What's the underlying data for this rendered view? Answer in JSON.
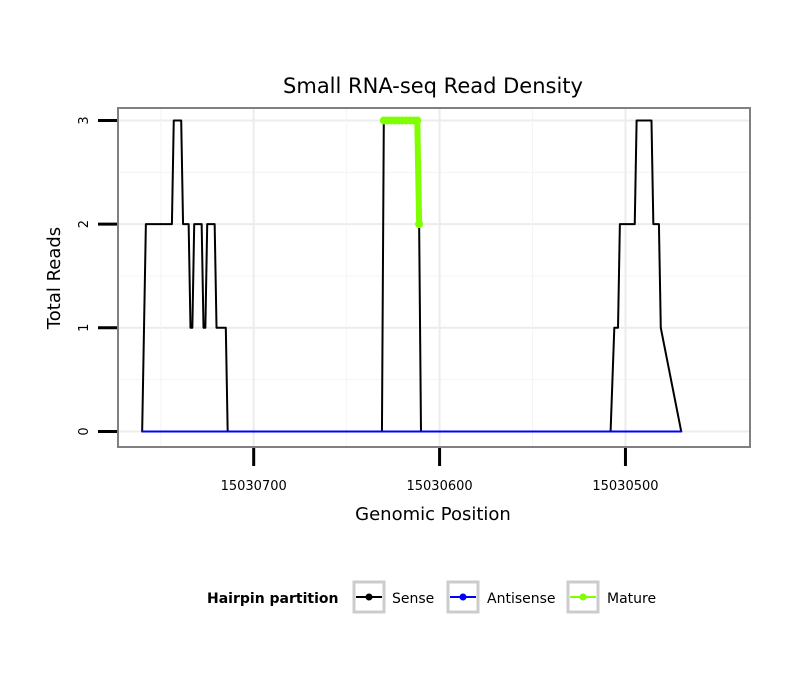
{
  "chart_data": {
    "type": "line",
    "title": "Small RNA-seq Read Density",
    "xlabel": "Genomic Position",
    "ylabel": "Total Reads",
    "xlim": [
      15030773,
      15030433
    ],
    "ylim": [
      -0.15,
      3.12
    ],
    "x_reversed": true,
    "x_ticks": [
      15030700,
      15030600,
      15030500
    ],
    "x_tick_labels": [
      "15030700",
      "15030600",
      "15030500"
    ],
    "y_ticks": [
      0,
      1,
      2,
      3
    ],
    "y_tick_labels": [
      "0",
      "1",
      "2",
      "3"
    ],
    "grid": true,
    "legend": {
      "title": "Hairpin partition",
      "position": "bottom",
      "entries": [
        {
          "label": "Sense",
          "color": "#000000"
        },
        {
          "label": "Antisense",
          "color": "#0000ff"
        },
        {
          "label": "Mature",
          "color": "#7fff00"
        }
      ]
    },
    "series": [
      {
        "name": "Sense",
        "color": "#000000",
        "x": [
          15030760,
          15030758,
          15030744,
          15030743,
          15030739,
          15030738,
          15030735,
          15030734,
          15030733,
          15030732,
          15030728,
          15030727,
          15030726,
          15030725,
          15030721,
          15030720,
          15030715,
          15030714,
          15030697,
          15030631,
          15030630,
          15030613,
          15030611,
          15030610,
          15030508,
          15030506,
          15030504,
          15030503,
          15030495,
          15030494,
          15030486,
          15030485,
          15030482,
          15030481,
          15030470
        ],
        "y": [
          0,
          2,
          2,
          3,
          3,
          2,
          2,
          1,
          1,
          2,
          2,
          1,
          1,
          2,
          2,
          1,
          1,
          0,
          0,
          0,
          3,
          3,
          2,
          0,
          0,
          1,
          1,
          2,
          2,
          3,
          3,
          2,
          2,
          1,
          0
        ]
      },
      {
        "name": "Antisense",
        "color": "#0000ff",
        "x": [
          15030760,
          15030697,
          15030631,
          15030610,
          15030508,
          15030470
        ],
        "y": [
          0,
          0,
          0,
          0,
          0,
          0
        ]
      },
      {
        "name": "Mature",
        "color": "#7fff00",
        "x": [
          15030630,
          15030628,
          15030626,
          15030624,
          15030622,
          15030620,
          15030618,
          15030616,
          15030614,
          15030612,
          15030611
        ],
        "y": [
          3,
          3,
          3,
          3,
          3,
          3,
          3,
          3,
          3,
          3,
          2
        ]
      }
    ]
  }
}
